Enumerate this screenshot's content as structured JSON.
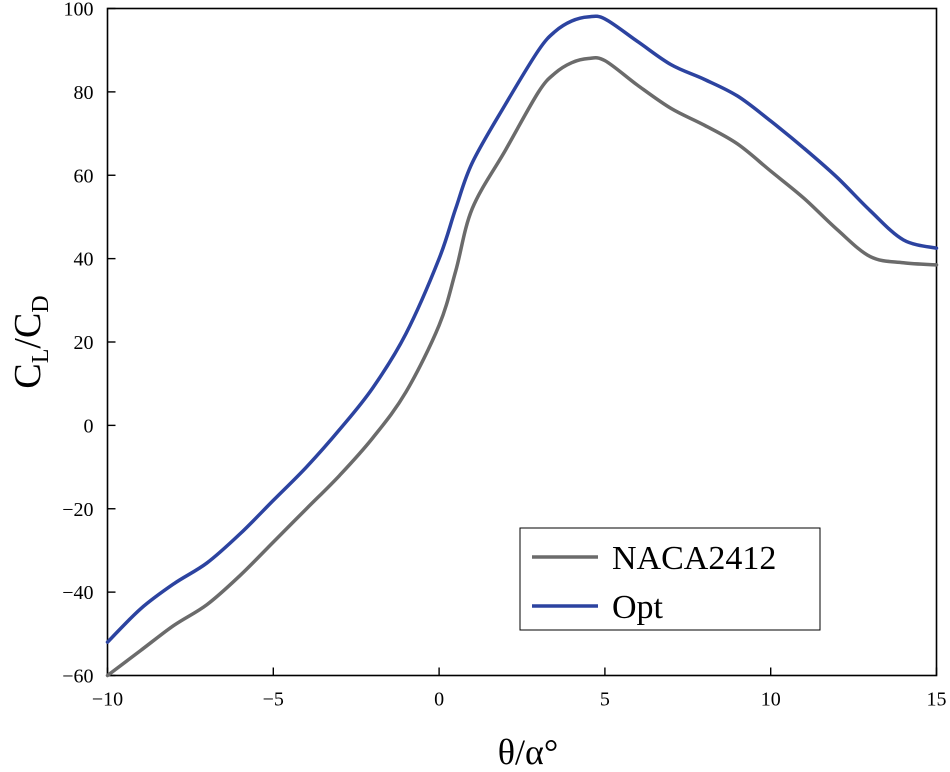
{
  "chart_data": {
    "type": "line",
    "title": "",
    "xlabel": "θ/α°",
    "ylabel": {
      "main": "C",
      "sub1": "L",
      "sep": "/C",
      "sub2": "D"
    },
    "xlim": [
      -10,
      15
    ],
    "ylim": [
      -60,
      100
    ],
    "xticks": [
      -10,
      -5,
      0,
      5,
      10,
      15
    ],
    "yticks": [
      -60,
      -40,
      -20,
      0,
      20,
      40,
      60,
      80,
      100
    ],
    "xtick_labels": [
      "−10",
      "−5",
      "0",
      "5",
      "10",
      "15"
    ],
    "ytick_labels": [
      "−60",
      "−40",
      "−20",
      "0",
      "20",
      "40",
      "60",
      "80",
      "100"
    ],
    "legend_position": "bottom-right",
    "series": [
      {
        "name": "NACA2412",
        "color": "#6b6b6b",
        "x": [
          -10,
          -9,
          -8,
          -7,
          -6,
          -5,
          -4,
          -3,
          -2,
          -1,
          0,
          0.5,
          1,
          2,
          3,
          3.5,
          4,
          4.5,
          5,
          6,
          7,
          8,
          9,
          10,
          11,
          12,
          13,
          14,
          15
        ],
        "y": [
          -60,
          -54,
          -48,
          -43,
          -36,
          -28,
          -20,
          -12,
          -3,
          8,
          24,
          37,
          52,
          66,
          80,
          84.5,
          87,
          88,
          87.5,
          81.5,
          76,
          72,
          67.5,
          61,
          54.5,
          47,
          40.5,
          39,
          38.5
        ]
      },
      {
        "name": "Opt",
        "color": "#2c43a0",
        "x": [
          -10,
          -9,
          -8,
          -7,
          -6,
          -5,
          -4,
          -3,
          -2,
          -1,
          0,
          0.5,
          1,
          2,
          3,
          3.5,
          4,
          4.5,
          5,
          6,
          7,
          8,
          9,
          10,
          11,
          12,
          13,
          14,
          15
        ],
        "y": [
          -52,
          -44,
          -38,
          -33,
          -26,
          -18,
          -10,
          -1,
          9,
          22,
          40,
          52,
          63,
          77,
          90,
          94.5,
          97,
          98,
          97.5,
          92,
          86.5,
          83,
          79,
          73,
          66.5,
          59.5,
          51.5,
          44.5,
          42.5
        ]
      }
    ]
  }
}
